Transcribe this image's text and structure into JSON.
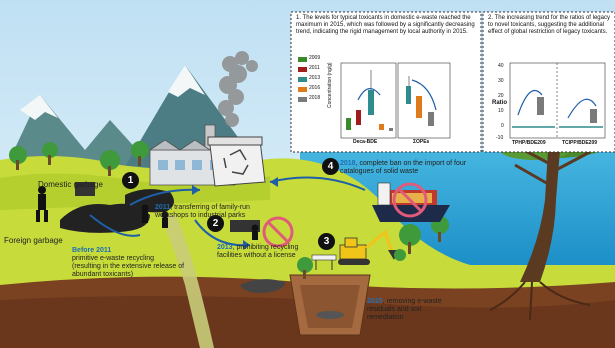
{
  "labels": {
    "domestic_garbage": "Domestic garbage",
    "foreign_garbage": "Foreign garbage"
  },
  "events": [
    {
      "num": "1",
      "year": "",
      "text": ""
    },
    {
      "num": "2",
      "year": "2011",
      "text": "transferring of family-run workshops to industrial parks"
    },
    {
      "num": "2b",
      "year": "2013",
      "text": "prohibiting recycling facilities without a license"
    },
    {
      "num": "3",
      "year": "2015",
      "text": "removing e-waste residuals and soil remediation"
    },
    {
      "num": "4",
      "year": "2018",
      "text": "complete ban on the import of four catalogues of solid waste"
    }
  ],
  "before": {
    "year": "Before 2011",
    "line1": "primitive e-waste recycling",
    "line2": "(resulting in the extensive release of abundant toxicants)"
  },
  "panel1": {
    "title": "1. The levels for typical toxicants in domestic e-waste reached the maximum in 2015, which was followed by a significantly decreasing trend, indicating the rigid management by local authority in 2015.",
    "ylabel": "Concentration (ng/g)",
    "xlabels": [
      "Deca-BDE",
      "ΣOPEs"
    ],
    "legend": [
      "2009",
      "2011",
      "2013",
      "2016",
      "2018"
    ],
    "legend_colors": [
      "#3a8a2c",
      "#a11d1d",
      "#2e8c8c",
      "#e07b1c",
      "#7a7a7a"
    ]
  },
  "panel2": {
    "title": "2. The increasing trend for the ratios of legacy to novel toxicants, suggesting the additional effect of global restriction of legacy toxicants.",
    "ylabel": "Ratio",
    "xlabels": [
      "TPHP/BDE209",
      "TCIPP/BDE209"
    ],
    "yticks": [
      "-10",
      "0",
      "10",
      "20",
      "30",
      "40"
    ]
  }
}
